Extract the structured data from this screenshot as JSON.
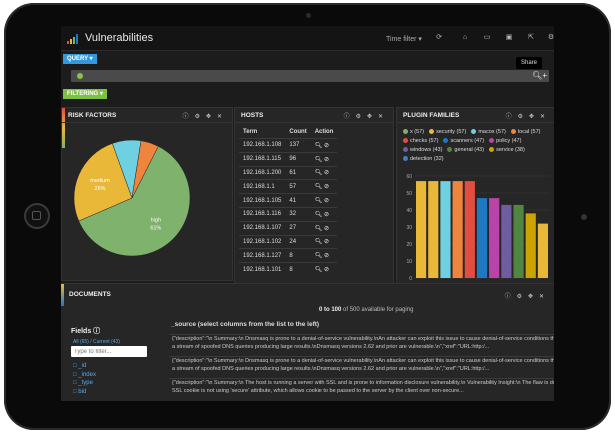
{
  "app": {
    "title": "Vulnerabilities",
    "time_filter": "Time filter ▾",
    "share_tooltip": "Share",
    "toolbar_icons": [
      "refresh-icon",
      "home-icon",
      "folder-icon",
      "save-icon",
      "share-icon",
      "gear-icon"
    ]
  },
  "query": {
    "button": "QUERY ▾",
    "search_glyph": "🔍︎",
    "add_glyph": "+"
  },
  "filtering": {
    "button": "FILTERING ▾"
  },
  "panel_icons": [
    "ⓘ",
    "⚙",
    "✥",
    "✕"
  ],
  "risk": {
    "title": "RISK FACTORS",
    "chart_data": {
      "type": "pie",
      "labels": [
        "high",
        "medium",
        "low",
        "none"
      ],
      "values": [
        61,
        26,
        8,
        5
      ],
      "display_labels": [
        [
          "high",
          "61%"
        ],
        [
          "medium",
          "26%"
        ],
        [
          "",
          ""
        ],
        [
          "",
          ""
        ]
      ],
      "colors": [
        "#7eb26d",
        "#eab839",
        "#6ed0e0",
        "#ef843c"
      ]
    }
  },
  "hosts": {
    "title": "HOSTS",
    "columns": [
      "Term",
      "Count",
      "Action"
    ],
    "rows": [
      [
        "192.168.1.108",
        "137"
      ],
      [
        "192.168.1.115",
        "96"
      ],
      [
        "192.168.1.200",
        "61"
      ],
      [
        "192.168.1.1",
        "57"
      ],
      [
        "192.168.1.105",
        "41"
      ],
      [
        "192.168.1.116",
        "32"
      ],
      [
        "192.168.1.107",
        "27"
      ],
      [
        "192.168.1.102",
        "24"
      ],
      [
        "192.168.1.127",
        "8"
      ],
      [
        "192.168.1.101",
        "8"
      ]
    ],
    "action_glyphs": "🔍︎ ⊘"
  },
  "plugins": {
    "title": "PLUGIN FAMILIES",
    "legend": [
      {
        "label": "x (57)",
        "color": "#7eb26d"
      },
      {
        "label": "security (57)",
        "color": "#eab839"
      },
      {
        "label": "macos (57)",
        "color": "#6ed0e0"
      },
      {
        "label": "local (57)",
        "color": "#ef843c"
      },
      {
        "label": "checks (57)",
        "color": "#e24d42"
      },
      {
        "label": "scanners (47)",
        "color": "#1f78c1"
      },
      {
        "label": "policy (47)",
        "color": "#ba43a9"
      },
      {
        "label": "windows (43)",
        "color": "#705da0"
      },
      {
        "label": "general (43)",
        "color": "#508642"
      },
      {
        "label": "service (38)",
        "color": "#cca300"
      },
      {
        "label": "detection (32)",
        "color": "#447ebc"
      }
    ],
    "chart_data": {
      "type": "bar",
      "yticks": [
        "60",
        "50",
        "40",
        "30",
        "20",
        "10",
        "0"
      ],
      "ylim": [
        0,
        60
      ],
      "values": [
        57,
        57,
        57,
        57,
        57,
        47,
        47,
        43,
        43,
        38,
        32
      ],
      "colors": [
        "#eab839",
        "#eab839",
        "#6ed0e0",
        "#ef843c",
        "#e24d42",
        "#1f78c1",
        "#ba43a9",
        "#705da0",
        "#508642",
        "#cca300",
        "#eab839"
      ]
    }
  },
  "documents": {
    "title": "DOCUMENTS",
    "paging_bold": "0 to 100",
    "paging_rest": " of 500 available for paging",
    "fields_title": "Fields ⓘ",
    "fields_links": "All (65) / Current (43)",
    "filter_placeholder": "Type to filter...",
    "fields": [
      "□ _id",
      "□ _index",
      "□ _type",
      "□ bid"
    ],
    "source_header": "_source (select columns from the list to the left)",
    "rows": [
      "{\"description\":\"\\n Summary:\\n Dnsmasq is prone to a denial-of-service vulnerability.\\nAn attacker can exploit this issue to cause denial-of-service conditions through",
      "a stream of spoofed DNS queries producing large results.\\nDnsmasq versions 2.62 and prior are vulnerable.\\n\",\"xref\":\"URL:http:/...",
      "{\"description\":\"\\n Summary:\\n Dnsmasq is prone to a denial-of-service vulnerability.\\nAn attacker can exploit this issue to cause denial-of-service conditions through",
      "a stream of spoofed DNS queries producing large results.\\nDnsmasq versions 2.62 and prior are vulnerable.\\n\",\"xref\":\"URL:http:/...",
      "{\"description\":\"\\n Summary:\\n The host is running a server with SSL and is prone to information disclosure vulnerability.\\n Vulnerability Insight:\\n The flaw is due to",
      "SSL cookie is not using 'secure' attribute, which allows cookie to be passed to the server by the client over non-secure..."
    ]
  }
}
